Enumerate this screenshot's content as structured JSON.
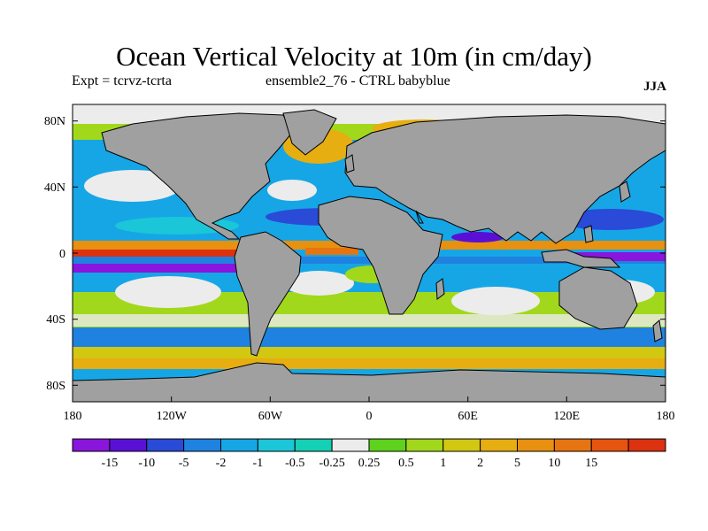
{
  "title": "Ocean Vertical Velocity at 10m (in cm/day)",
  "subtitle_left": "Expt = tcrvz-tcrta",
  "subtitle_center": "ensemble2_76 - CTRL babyblue",
  "season": "JJA",
  "lat_labels": [
    "80N",
    "40N",
    "0",
    "40S",
    "80S"
  ],
  "lon_labels": [
    "180",
    "120W",
    "60W",
    "0",
    "60E",
    "120E",
    "180"
  ],
  "colorbar": {
    "colors": [
      "#8a15dc",
      "#5a10d4",
      "#2a4ad8",
      "#1f82e0",
      "#16a6e6",
      "#1bc6d8",
      "#14d0b4",
      "#ececec",
      "#5ed21c",
      "#a2d81c",
      "#d2c812",
      "#e6ae10",
      "#e89010",
      "#e67410",
      "#e65410",
      "#dc3210"
    ],
    "labels": [
      "-15",
      "-10",
      "-5",
      "-2",
      "-1",
      "-0.5",
      "-0.25",
      "0.25",
      "0.5",
      "1",
      "2",
      "5",
      "10",
      "15"
    ]
  },
  "colors": {
    "land": "#a0a0a0",
    "coast": "#000000"
  }
}
